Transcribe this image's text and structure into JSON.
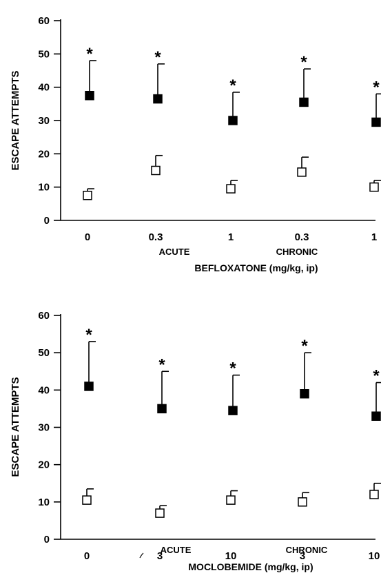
{
  "chart_data": [
    {
      "type": "scatter",
      "title": "",
      "xlabel": "BEFLOXATONE (mg/kg, ip)",
      "ylabel": "ESCAPE ATTEMPTS",
      "ylim": [
        0,
        60
      ],
      "yticks": [
        "0",
        "10",
        "20",
        "30",
        "40",
        "50",
        "60"
      ],
      "categories": [
        "0",
        "0.3",
        "1",
        "0.3",
        "1"
      ],
      "group_labels": [
        "ACUTE",
        "CHRONIC"
      ],
      "series": [
        {
          "marker": "filled-square",
          "values": [
            37.5,
            36.5,
            30,
            35.5,
            29.5
          ],
          "error": [
            10.5,
            10.5,
            8.5,
            10,
            8.5
          ],
          "significance": [
            "*",
            "*",
            "*",
            "*",
            "*"
          ]
        },
        {
          "marker": "open-square",
          "values": [
            7.5,
            15,
            9.5,
            14.5,
            10
          ],
          "error": [
            2,
            4.5,
            2.5,
            4.5,
            2
          ]
        }
      ],
      "grid": false,
      "legend": "none"
    },
    {
      "type": "scatter",
      "title": "",
      "xlabel": "MOCLOBEMIDE (mg/kg, ip)",
      "ylabel": "ESCAPE ATTEMPTS",
      "ylim": [
        0,
        60
      ],
      "yticks": [
        "0",
        "10",
        "20",
        "30",
        "40",
        "50",
        "60"
      ],
      "categories": [
        "0",
        "3",
        "10",
        "3",
        "10"
      ],
      "group_labels": [
        "ACUTE",
        "CHRONIC"
      ],
      "series": [
        {
          "marker": "filled-square",
          "values": [
            41,
            35,
            34.5,
            39,
            33
          ],
          "error": [
            12,
            10,
            9.5,
            11,
            9
          ],
          "significance": [
            "*",
            "*",
            "*",
            "*",
            "*"
          ]
        },
        {
          "marker": "open-square",
          "values": [
            10.5,
            7,
            10.5,
            10,
            12
          ],
          "error": [
            3,
            2,
            2.5,
            2.5,
            3
          ]
        }
      ],
      "grid": false,
      "legend": "none"
    }
  ]
}
